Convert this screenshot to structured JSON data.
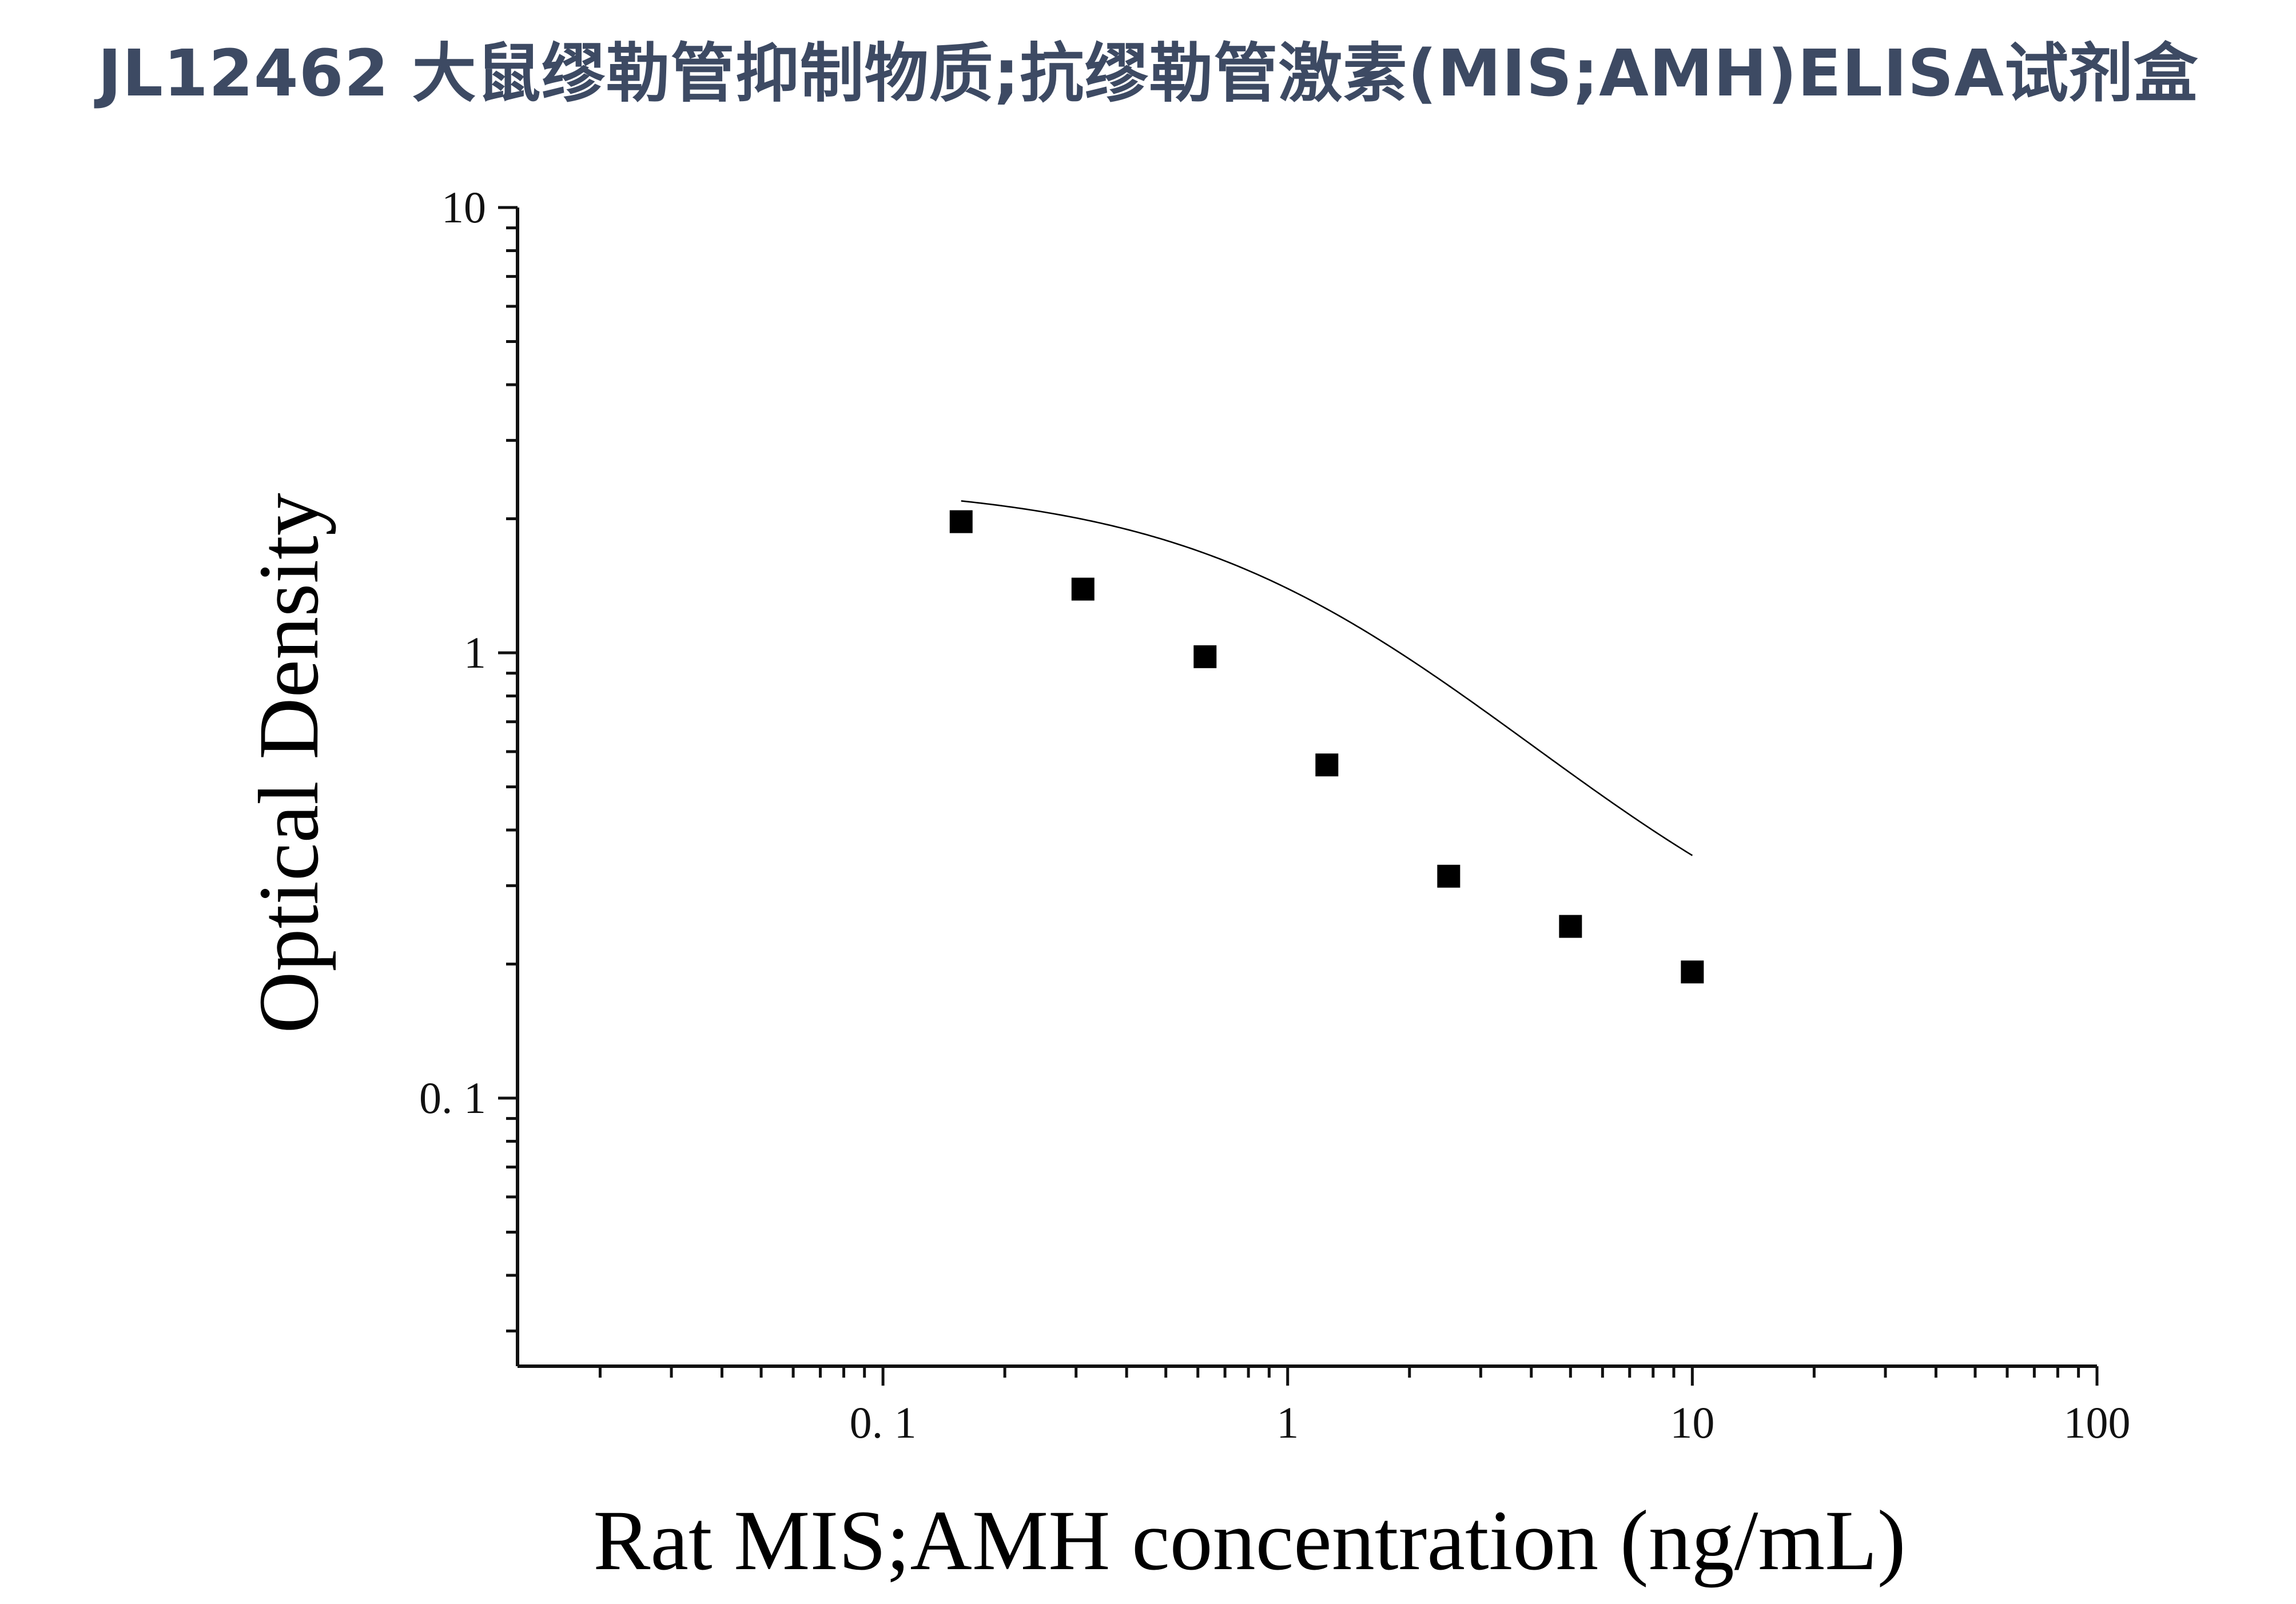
{
  "title": "JL12462 大鼠缪勒管抑制物质;抗缪勒管激素(MIS;AMH)ELISA试剂盒",
  "chart_data": {
    "type": "scatter",
    "x_scale": "log",
    "y_scale": "log",
    "xlabel": "Rat MIS;AMH concentration (ng/mL)",
    "ylabel": "Optical Density",
    "xlim": [
      0.0125,
      100
    ],
    "ylim": [
      0.025,
      10
    ],
    "x_ticks": [
      {
        "value": 0.1,
        "label": "0. 1"
      },
      {
        "value": 1,
        "label": "1"
      },
      {
        "value": 10,
        "label": "10"
      },
      {
        "value": 100,
        "label": "100"
      }
    ],
    "y_ticks": [
      {
        "value": 0.1,
        "label": "0. 1"
      },
      {
        "value": 1,
        "label": "1"
      },
      {
        "value": 10,
        "label": "10"
      }
    ],
    "grid": false,
    "series": [
      {
        "marker": "square",
        "color": "#000000",
        "x": [
          0.156,
          0.312,
          0.625,
          1.25,
          2.5,
          5,
          10
        ],
        "y": [
          1.97,
          1.39,
          0.98,
          0.56,
          0.315,
          0.243,
          0.192
        ]
      }
    ],
    "fit_curve": {
      "type": "4PL",
      "color": "#000000",
      "A": 2.4,
      "D": 0.16,
      "C": 1.2,
      "B": 1.12,
      "x_range": [
        0.156,
        10
      ]
    }
  }
}
